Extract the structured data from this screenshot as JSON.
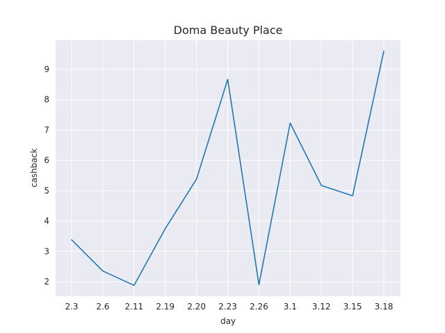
{
  "chart_data": {
    "type": "line",
    "title": "Doma Beauty Place",
    "xlabel": "day",
    "ylabel": "cashback",
    "categories": [
      "2.3",
      "2.6",
      "2.11",
      "2.19",
      "2.20",
      "2.23",
      "2.26",
      "3.1",
      "3.12",
      "3.15",
      "3.18"
    ],
    "series": [
      {
        "values": [
          3.38,
          2.35,
          1.88,
          3.75,
          5.38,
          8.67,
          1.9,
          7.23,
          5.17,
          4.83,
          9.6
        ],
        "color": "#1f77b4"
      }
    ],
    "yticks": [
      2,
      3,
      4,
      5,
      6,
      7,
      8,
      9
    ],
    "ylim": [
      1.52,
      9.96
    ],
    "grid": true,
    "legend": "none",
    "background": "#eaeaf2"
  }
}
